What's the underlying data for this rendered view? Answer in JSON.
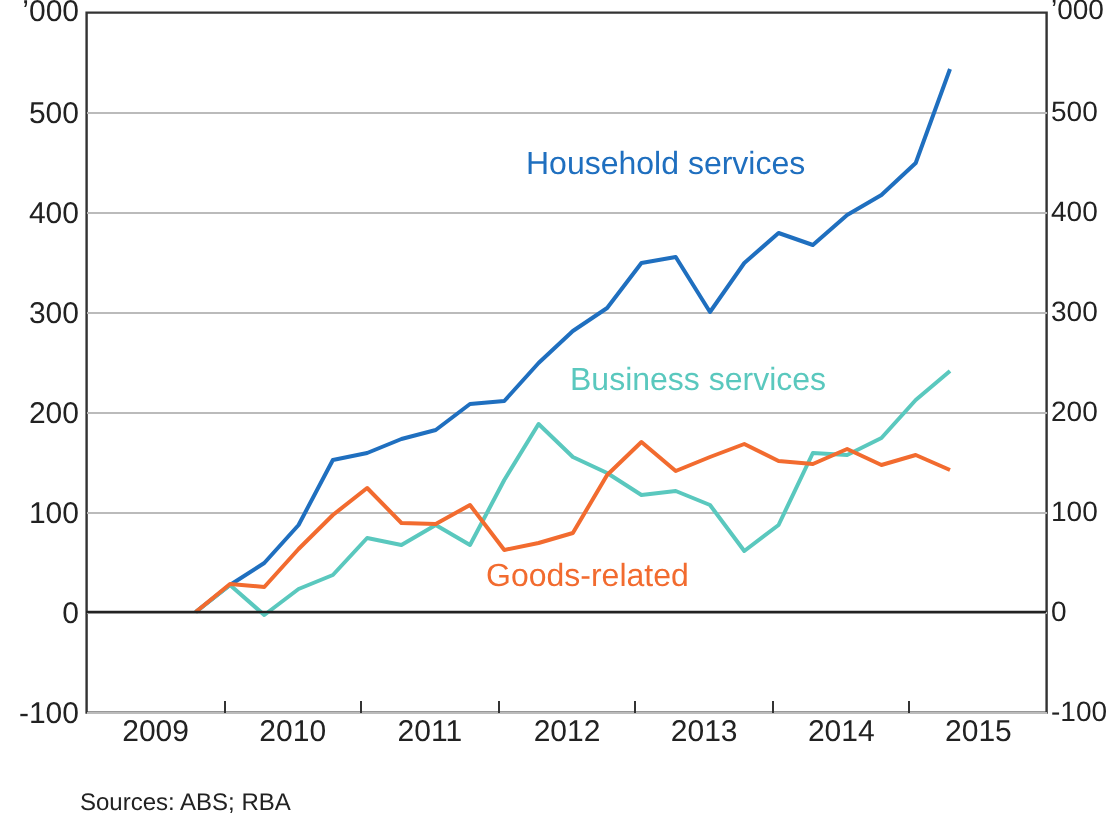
{
  "chart_data": {
    "type": "line",
    "ylabel": "’000",
    "y2label": "’000",
    "x": [
      2009.8,
      2010.05,
      2010.3,
      2010.55,
      2010.8,
      2011.05,
      2011.3,
      2011.55,
      2011.8,
      2012.05,
      2012.3,
      2012.55,
      2012.8,
      2013.05,
      2013.3,
      2013.55,
      2013.8,
      2014.05,
      2014.3,
      2014.55,
      2014.8,
      2015.05,
      2015.3
    ],
    "series": [
      {
        "name": "Household services",
        "color": "#1f6fbf",
        "values": [
          0,
          27,
          49,
          87,
          152,
          159,
          173,
          182,
          208,
          211,
          249,
          281,
          304,
          349,
          355,
          300,
          349,
          379,
          367,
          397,
          417,
          449,
          543
        ]
      },
      {
        "name": "Business services",
        "color": "#5ac8be",
        "values": [
          0,
          27,
          -3,
          23,
          37,
          74,
          67,
          87,
          67,
          132,
          188,
          155,
          139,
          117,
          121,
          107,
          61,
          87,
          159,
          157,
          174,
          212,
          241
        ]
      },
      {
        "name": "Goods-related",
        "color": "#f26b2f",
        "values": [
          0,
          28,
          25,
          63,
          97,
          124,
          89,
          88,
          107,
          62,
          69,
          79,
          137,
          170,
          141,
          155,
          168,
          151,
          148,
          163,
          147,
          157,
          142
        ]
      }
    ],
    "xlim": [
      2009,
      2016
    ],
    "xticks": [
      {
        "value": 2009.5,
        "label": "2009"
      },
      {
        "value": 2010,
        "label": null
      },
      {
        "value": 2010.5,
        "label": "2010"
      },
      {
        "value": 2011,
        "label": null
      },
      {
        "value": 2011.5,
        "label": "2011"
      },
      {
        "value": 2012,
        "label": null
      },
      {
        "value": 2012.5,
        "label": "2012"
      },
      {
        "value": 2013,
        "label": null
      },
      {
        "value": 2013.5,
        "label": "2013"
      },
      {
        "value": 2014,
        "label": null
      },
      {
        "value": 2014.5,
        "label": "2014"
      },
      {
        "value": 2015,
        "label": null
      },
      {
        "value": 2015.5,
        "label": "2015"
      }
    ],
    "ylim": [
      -100,
      600
    ],
    "yticks": [
      -100,
      0,
      100,
      200,
      300,
      400,
      500
    ],
    "y2lim": [
      -100,
      600
    ],
    "y2ticks": [
      -100,
      0,
      100,
      200,
      300,
      400,
      500
    ],
    "ref_lines": [
      {
        "axis": "y",
        "value": 0,
        "color": "#222222"
      }
    ],
    "grid": "y",
    "marker": "none",
    "line_style": "solid",
    "annotations": [
      "Sources:  ABS; RBA"
    ]
  }
}
